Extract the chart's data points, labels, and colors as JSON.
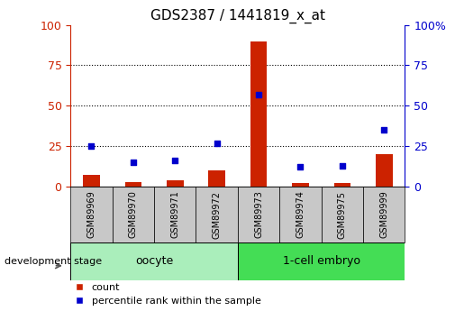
{
  "title": "GDS2387 / 1441819_x_at",
  "samples": [
    "GSM89969",
    "GSM89970",
    "GSM89971",
    "GSM89972",
    "GSM89973",
    "GSM89974",
    "GSM89975",
    "GSM89999"
  ],
  "count_values": [
    7,
    3,
    4,
    10,
    90,
    2,
    2,
    20
  ],
  "percentile_values": [
    25,
    15,
    16,
    27,
    57,
    12,
    13,
    35
  ],
  "ylim": [
    0,
    100
  ],
  "yticks": [
    0,
    25,
    50,
    75,
    100
  ],
  "bar_color": "#CC2200",
  "scatter_color": "#0000CC",
  "bar_width": 0.4,
  "axis_left_color": "#CC2200",
  "axis_right_color": "#0000CC",
  "xlabel_area_color": "#C8C8C8",
  "oocyte_color": "#AAEEBB",
  "embryo_color": "#44DD55",
  "dev_stage_label": "development stage",
  "legend_count": "count",
  "legend_percentile": "percentile rank within the sample",
  "title_fontsize": 11
}
